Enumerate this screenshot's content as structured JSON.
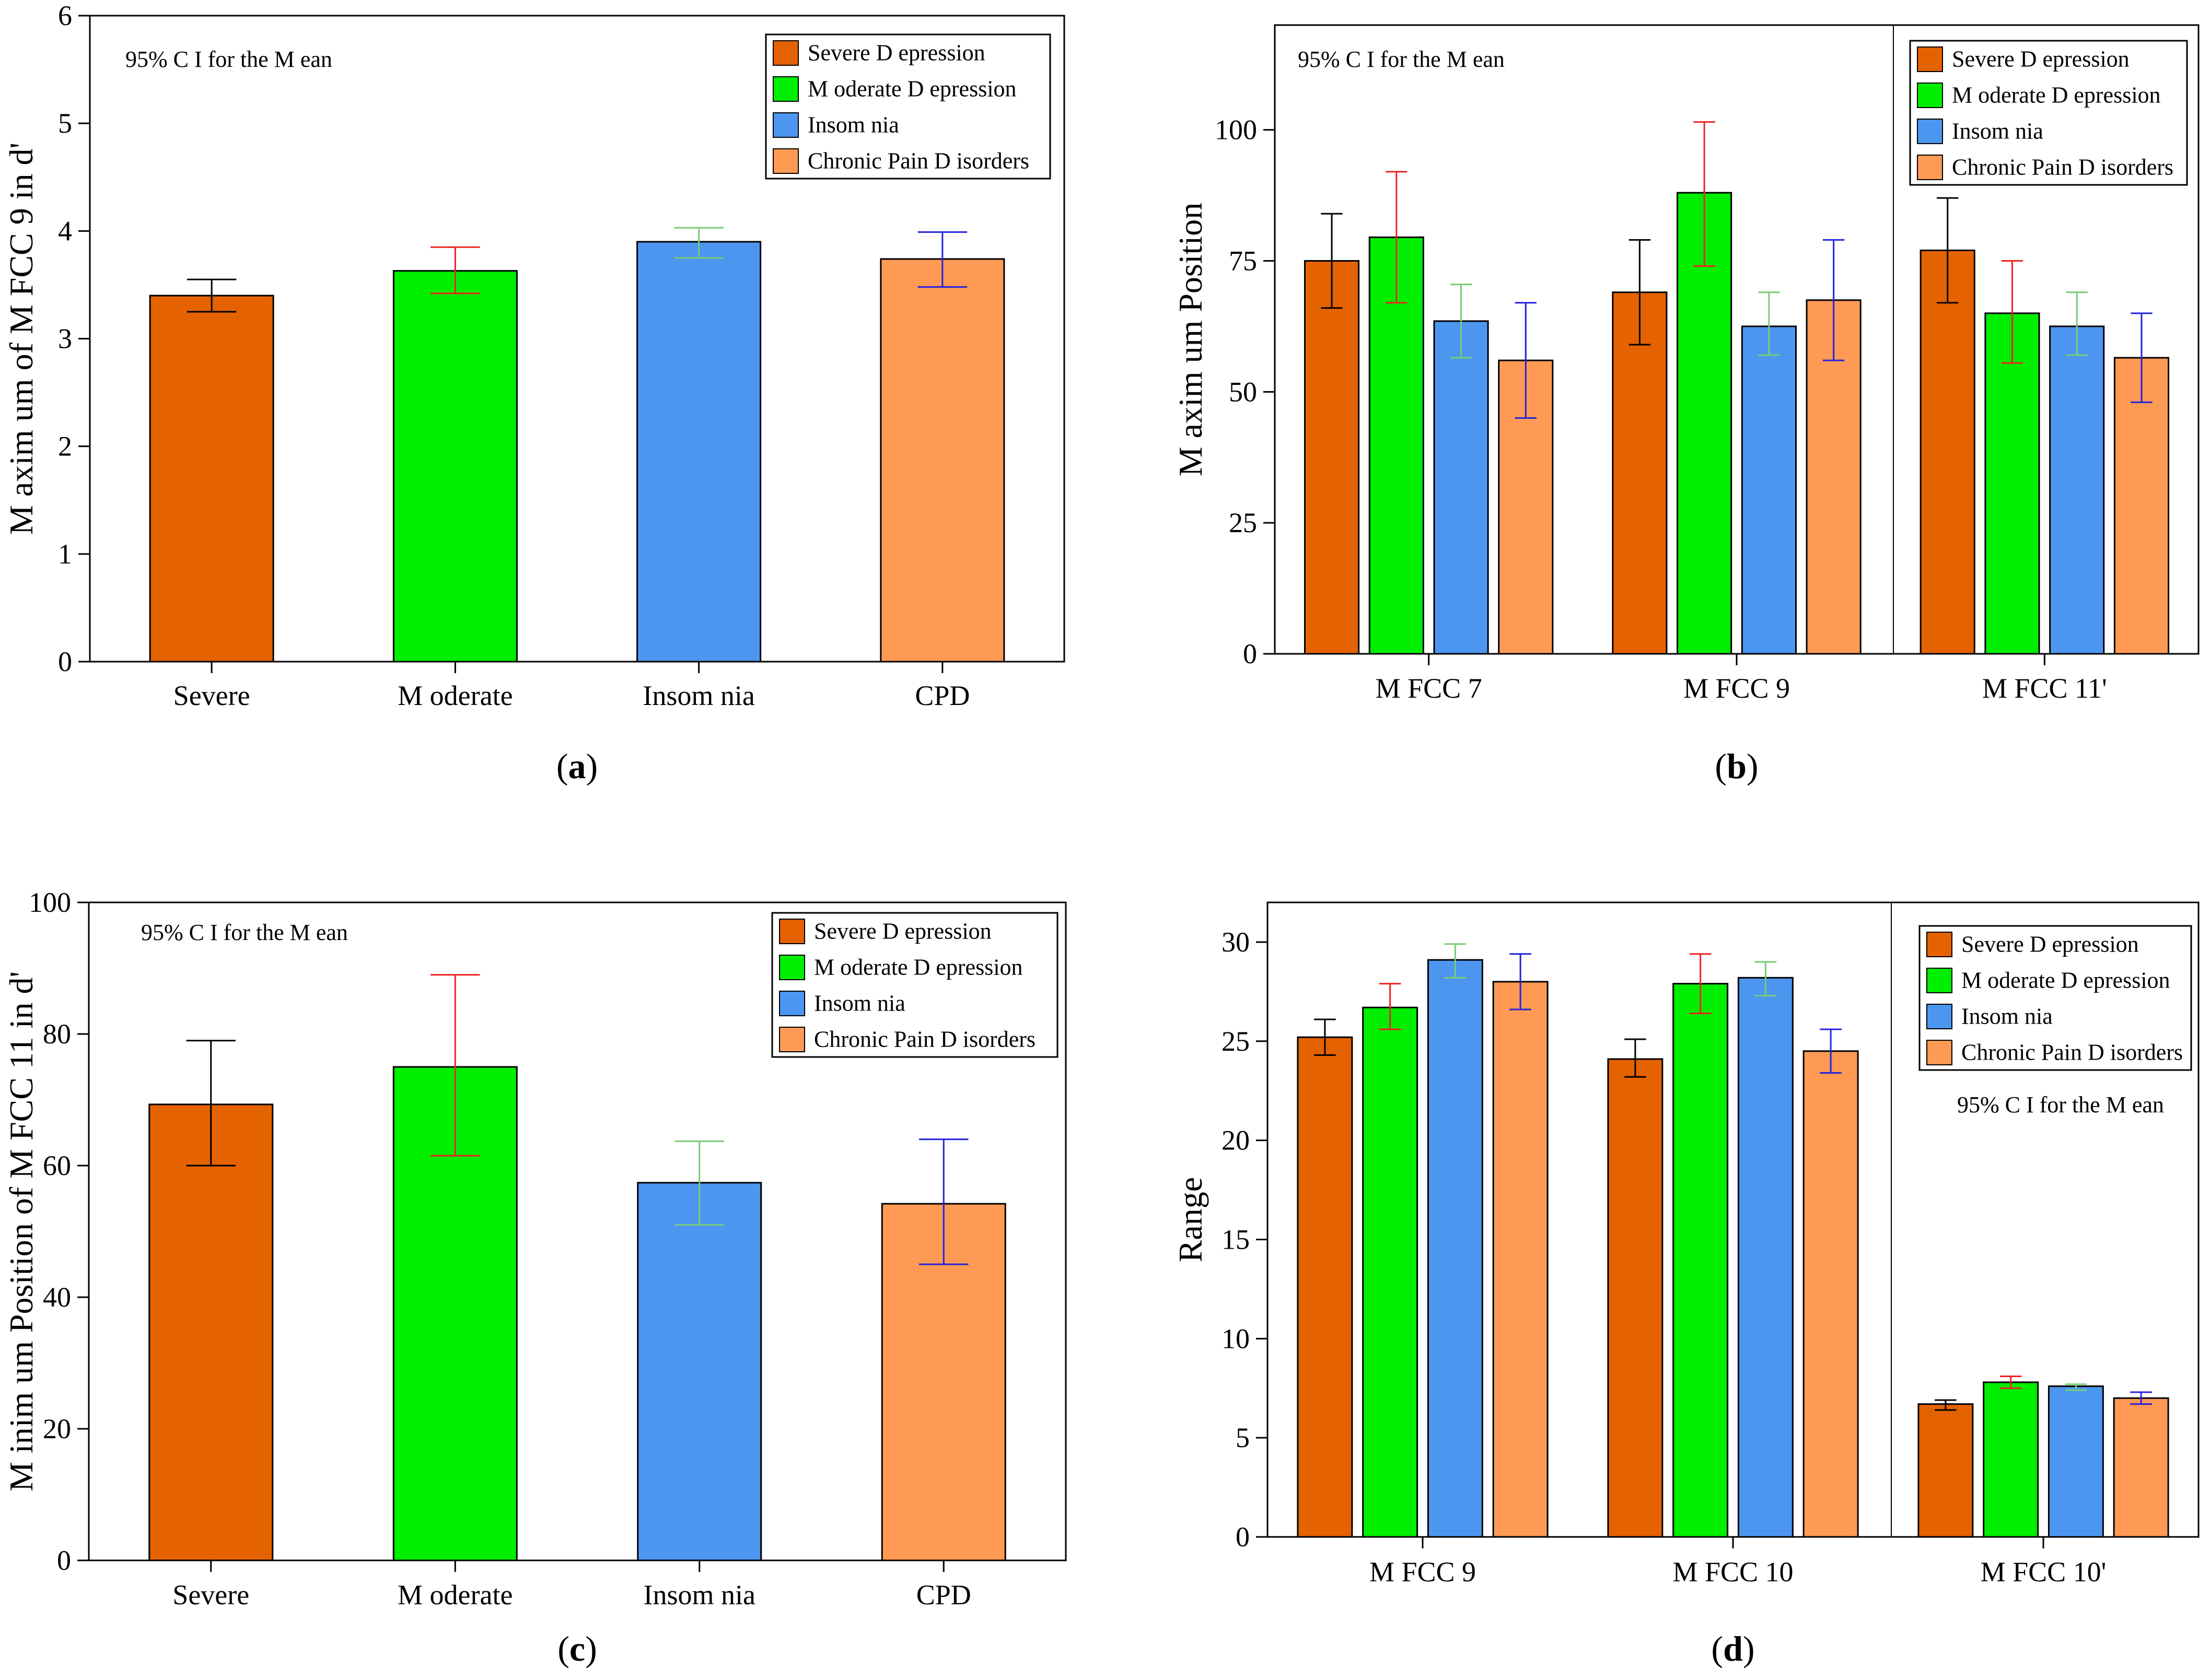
{
  "colors": {
    "severe": "#e56200",
    "moderate": "#00ee00",
    "insomnia": "#4d96f0",
    "cpd": "#ff9a55",
    "err_severe": "#000000",
    "err_moderate": "#ee2222",
    "err_insomnia": "#77cc77",
    "err_cpd": "#2222dd"
  },
  "chart_data": [
    {
      "type": "bar",
      "panel_label": "a",
      "ylabel": "M axim um  of M FCC 9 in d'",
      "ylim": [
        0,
        6
      ],
      "yticks": [
        0,
        1,
        2,
        3,
        4,
        5,
        6
      ],
      "annotation": "95%  C I for the M ean",
      "legend": [
        "Severe D epression",
        "M oderate D epression",
        "Insom nia",
        "Chronic Pain D isorders"
      ],
      "categories": [
        "Severe",
        "M oderate",
        "Insom nia",
        "CPD"
      ],
      "values": [
        3.4,
        3.63,
        3.9,
        3.74
      ],
      "ci_low": [
        3.25,
        3.42,
        3.75,
        3.48
      ],
      "ci_high": [
        3.55,
        3.85,
        4.03,
        3.99
      ]
    },
    {
      "type": "bar",
      "panel_label": "b",
      "ylabel": "M axim um  Position",
      "ylim": [
        0,
        120
      ],
      "yticks": [
        0,
        25,
        50,
        75,
        100
      ],
      "annotation": "95%  C I for the M ean",
      "legend": [
        "Severe D epression",
        "M oderate D epression",
        "Insom nia",
        "Chronic Pain D isorders"
      ],
      "groups": [
        "M FCC  7",
        "M FCC  9",
        "M FCC  11'"
      ],
      "series": [
        {
          "name": "Severe D epression",
          "values": [
            75,
            69,
            77
          ],
          "ci_low": [
            66,
            59,
            67
          ],
          "ci_high": [
            84,
            79,
            87
          ]
        },
        {
          "name": "M oderate D epression",
          "values": [
            79.5,
            88,
            65
          ],
          "ci_low": [
            67,
            74,
            55.5
          ],
          "ci_high": [
            92,
            101.5,
            75
          ]
        },
        {
          "name": "Insom nia",
          "values": [
            63.5,
            62.5,
            62.5
          ],
          "ci_low": [
            56.5,
            57,
            57
          ],
          "ci_high": [
            70.5,
            69,
            69
          ]
        },
        {
          "name": "Chronic Pain D isorders",
          "values": [
            56,
            67.5,
            56.5
          ],
          "ci_low": [
            45,
            56,
            48
          ],
          "ci_high": [
            67,
            79,
            65
          ]
        }
      ]
    },
    {
      "type": "bar",
      "panel_label": "c",
      "ylabel": "M inim um  Position of M FCC 11 in d'",
      "ylim": [
        0,
        100
      ],
      "yticks": [
        0,
        20,
        40,
        60,
        80,
        100
      ],
      "annotation": "95%  C I for the M ean",
      "legend": [
        "Severe D epression",
        "M oderate D epression",
        "Insom nia",
        "Chronic Pain D isorders"
      ],
      "categories": [
        "Severe",
        "M oderate",
        "Insom nia",
        "CPD"
      ],
      "values": [
        69.3,
        75,
        57.4,
        54.2
      ],
      "ci_low": [
        60,
        61.5,
        51,
        45
      ],
      "ci_high": [
        79,
        89,
        63.7,
        64
      ]
    },
    {
      "type": "bar",
      "panel_label": "d",
      "ylabel": "Range",
      "ylim": [
        0,
        32
      ],
      "yticks": [
        0,
        5,
        10,
        15,
        20,
        25,
        30
      ],
      "annotation": "95%  C I for the M ean",
      "legend": [
        "Severe D epression",
        "M oderate D epression",
        "Insom nia",
        "Chronic Pain D isorders"
      ],
      "groups": [
        "M FCC  9",
        "M FCC  10",
        "M FCC  10'"
      ],
      "series": [
        {
          "name": "Severe D epression",
          "values": [
            25.2,
            24.1,
            6.7
          ],
          "ci_low": [
            24.3,
            23.2,
            6.4
          ],
          "ci_high": [
            26.1,
            25.1,
            6.9
          ]
        },
        {
          "name": "M oderate D epression",
          "values": [
            26.7,
            27.9,
            7.8
          ],
          "ci_low": [
            25.6,
            26.4,
            7.5
          ],
          "ci_high": [
            27.9,
            29.4,
            8.1
          ]
        },
        {
          "name": "Insom nia",
          "values": [
            29.1,
            28.2,
            7.6
          ],
          "ci_low": [
            28.2,
            27.3,
            7.4
          ],
          "ci_high": [
            29.9,
            29.0,
            7.7
          ]
        },
        {
          "name": "Chronic Pain D isorders",
          "values": [
            28.0,
            24.5,
            7.0
          ],
          "ci_low": [
            26.6,
            23.4,
            6.7
          ],
          "ci_high": [
            29.4,
            25.6,
            7.3
          ]
        }
      ]
    }
  ]
}
